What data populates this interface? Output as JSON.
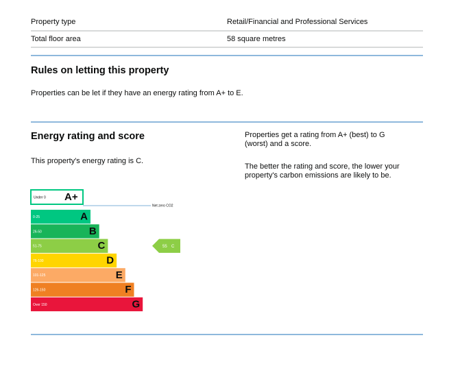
{
  "property_details": [
    {
      "label": "Property type",
      "value": "Retail/Financial and Professional Services"
    },
    {
      "label": "Total floor area",
      "value": "58 square metres"
    }
  ],
  "letting_rules": {
    "title": "Rules on letting this property",
    "text": "Properties can be let if they have an energy rating from A+ to E."
  },
  "energy_rating": {
    "title": "Energy rating and score",
    "statement": "This property's energy rating is C.",
    "explanation": [
      "Properties get a rating from A+ (best) to G",
      "(worst) and a score."
    ],
    "explanation_2": [
      "The better the rating and score, the lower your",
      "property's carbon emissions are likely to be."
    ],
    "net_zero_band": {
      "range": "Under 0",
      "letter": "A+",
      "color": "#00c781"
    },
    "net_zero_label": "Net zero CO2",
    "bands": [
      {
        "range": "0-25",
        "letter": "A",
        "color": "#00c781"
      },
      {
        "range": "26-50",
        "letter": "B",
        "color": "#19b459"
      },
      {
        "range": "51-75",
        "letter": "C",
        "color": "#8dce46"
      },
      {
        "range": "76-100",
        "letter": "D",
        "color": "#ffd500"
      },
      {
        "range": "101-125",
        "letter": "E",
        "color": "#fcaa65"
      },
      {
        "range": "126-150",
        "letter": "F",
        "color": "#ef8023"
      },
      {
        "range": "Over 150",
        "letter": "G",
        "color": "#e9153b"
      }
    ],
    "current": {
      "score": 55,
      "band": "C"
    }
  }
}
